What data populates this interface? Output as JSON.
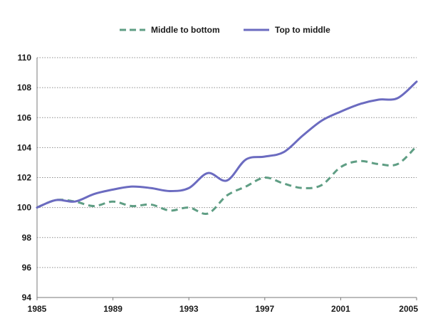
{
  "chart_data": {
    "type": "line",
    "title": "",
    "xlabel": "",
    "ylabel": "",
    "xlim": [
      1985,
      2005
    ],
    "ylim": [
      94,
      110
    ],
    "x_ticks": [
      1985,
      1989,
      1993,
      1997,
      2001,
      2005
    ],
    "y_ticks": [
      94,
      96,
      98,
      100,
      102,
      104,
      106,
      108,
      110
    ],
    "grid": "horizontal dotted",
    "legend_position": "top-center",
    "x": [
      1985,
      1986,
      1987,
      1988,
      1989,
      1990,
      1991,
      1992,
      1993,
      1994,
      1995,
      1996,
      1997,
      1998,
      1999,
      2000,
      2001,
      2002,
      2003,
      2004,
      2005
    ],
    "series": [
      {
        "name": "Middle to bottom",
        "style": "dashed",
        "color": "#5f9e84",
        "values": [
          100.0,
          100.5,
          100.4,
          100.1,
          100.4,
          100.1,
          100.2,
          99.8,
          100.0,
          99.6,
          100.8,
          101.4,
          102.0,
          101.6,
          101.3,
          101.5,
          102.7,
          103.1,
          102.9,
          102.9,
          104.1
        ]
      },
      {
        "name": "Top to middle",
        "style": "solid",
        "color": "#6b6bc0",
        "values": [
          100.0,
          100.5,
          100.4,
          100.9,
          101.2,
          101.4,
          101.3,
          101.1,
          101.3,
          102.3,
          101.8,
          103.2,
          103.4,
          103.7,
          104.8,
          105.8,
          106.4,
          106.9,
          107.2,
          107.3,
          108.4
        ]
      }
    ]
  }
}
